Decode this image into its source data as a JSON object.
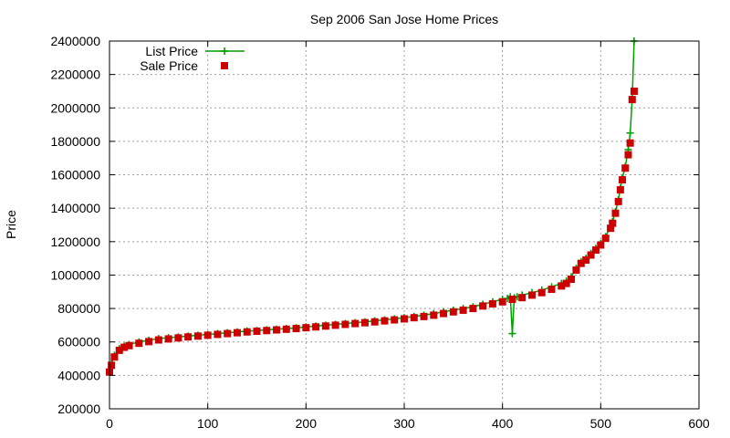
{
  "chart_data": {
    "type": "scatter",
    "title": "Sep 2006 San Jose Home Prices",
    "xlabel": "",
    "ylabel": "Price",
    "xlim": [
      0,
      600
    ],
    "ylim": [
      200000,
      2400000
    ],
    "x_ticks": [
      "0",
      "100",
      "200",
      "300",
      "400",
      "500",
      "600"
    ],
    "y_ticks": [
      "200000",
      "400000",
      "600000",
      "800000",
      "1000000",
      "1200000",
      "1400000",
      "1600000",
      "1800000",
      "2000000",
      "2200000",
      "2400000"
    ],
    "grid": true,
    "legend_position": "top-left",
    "series": [
      {
        "name": "List Price",
        "style": "linespoints",
        "marker": "plus",
        "color": "#00a000",
        "x": [
          0,
          2,
          5,
          10,
          15,
          20,
          30,
          40,
          50,
          60,
          70,
          80,
          90,
          100,
          110,
          120,
          130,
          140,
          150,
          160,
          170,
          180,
          190,
          200,
          210,
          220,
          230,
          240,
          250,
          260,
          270,
          280,
          290,
          300,
          310,
          320,
          330,
          340,
          350,
          360,
          370,
          380,
          390,
          400,
          405,
          408,
          410,
          412,
          415,
          420,
          430,
          440,
          450,
          460,
          465,
          470,
          475,
          480,
          485,
          490,
          495,
          500,
          505,
          510,
          512,
          515,
          518,
          520,
          522,
          525,
          528,
          530,
          532,
          534
        ],
        "values": [
          420000,
          470000,
          520000,
          560000,
          575000,
          585000,
          600000,
          610000,
          620000,
          625000,
          630000,
          635000,
          640000,
          645000,
          650000,
          655000,
          660000,
          665000,
          668000,
          672000,
          676000,
          680000,
          684000,
          690000,
          695000,
          700000,
          705000,
          710000,
          715000,
          720000,
          726000,
          732000,
          738000,
          745000,
          752000,
          760000,
          770000,
          780000,
          790000,
          800000,
          810000,
          825000,
          840000,
          855000,
          860000,
          870000,
          650000,
          865000,
          870000,
          880000,
          895000,
          910000,
          930000,
          950000,
          965000,
          990000,
          1040000,
          1080000,
          1100000,
          1130000,
          1160000,
          1190000,
          1230000,
          1290000,
          1320000,
          1380000,
          1450000,
          1520000,
          1580000,
          1650000,
          1750000,
          1850000,
          2050000,
          2400000
        ]
      },
      {
        "name": "Sale Price",
        "style": "points",
        "marker": "square",
        "color": "#cc0000",
        "x": [
          0,
          2,
          5,
          10,
          15,
          20,
          30,
          40,
          50,
          60,
          70,
          80,
          90,
          100,
          110,
          120,
          130,
          140,
          150,
          160,
          170,
          180,
          190,
          200,
          210,
          220,
          230,
          240,
          250,
          260,
          270,
          280,
          290,
          300,
          310,
          320,
          330,
          340,
          350,
          360,
          370,
          380,
          390,
          400,
          410,
          420,
          430,
          440,
          450,
          460,
          465,
          470,
          475,
          480,
          485,
          490,
          495,
          500,
          505,
          510,
          512,
          515,
          518,
          520,
          522,
          525,
          528,
          530,
          532,
          534
        ],
        "values": [
          420000,
          460000,
          510000,
          550000,
          568000,
          578000,
          592000,
          602000,
          612000,
          618000,
          624000,
          630000,
          635000,
          640000,
          645000,
          650000,
          655000,
          660000,
          664000,
          668000,
          672000,
          676000,
          680000,
          685000,
          690000,
          695000,
          700000,
          705000,
          710000,
          715000,
          720000,
          726000,
          732000,
          738000,
          745000,
          752000,
          760000,
          770000,
          780000,
          790000,
          800000,
          815000,
          828000,
          840000,
          855000,
          865000,
          880000,
          895000,
          915000,
          935000,
          950000,
          975000,
          1030000,
          1070000,
          1090000,
          1120000,
          1150000,
          1180000,
          1220000,
          1280000,
          1310000,
          1370000,
          1440000,
          1510000,
          1570000,
          1640000,
          1720000,
          1790000,
          2050000,
          2100000
        ]
      }
    ]
  }
}
